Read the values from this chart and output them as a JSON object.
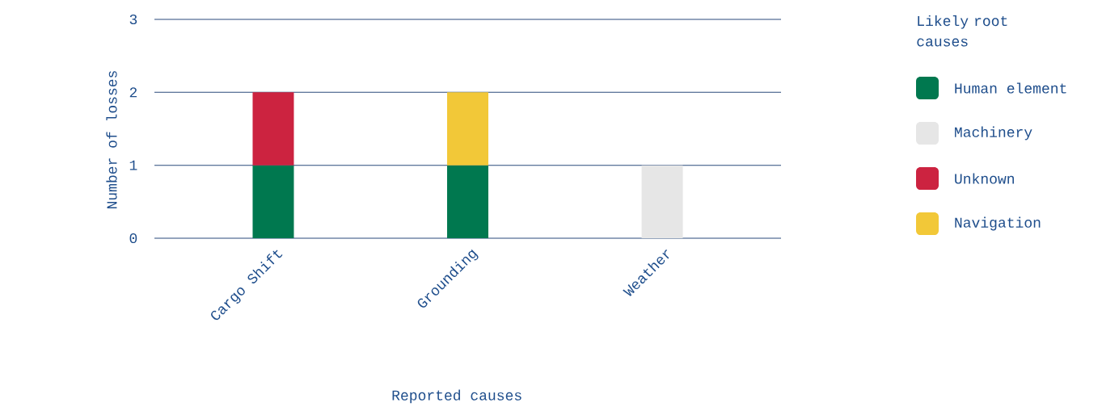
{
  "chart_data": {
    "type": "bar",
    "stacked": true,
    "xlabel": "Reported causes",
    "ylabel": "Number of losses",
    "legend_title": "Likely root causes",
    "categories": [
      "Cargo Shift",
      "Grounding",
      "Weather"
    ],
    "series": [
      {
        "name": "Human element",
        "color": "#00784f",
        "values": [
          1,
          1,
          null
        ]
      },
      {
        "name": "Machinery",
        "color": "#e6e6e6",
        "values": [
          null,
          null,
          1
        ]
      },
      {
        "name": "Unknown",
        "color": "#cc2340",
        "values": [
          1,
          null,
          null
        ]
      },
      {
        "name": "Navigation",
        "color": "#f2c838",
        "values": [
          null,
          1,
          null
        ]
      }
    ],
    "ylim": [
      0,
      3
    ],
    "yticks": [
      0,
      1,
      2,
      3
    ],
    "grid": "y",
    "legend": "right"
  }
}
